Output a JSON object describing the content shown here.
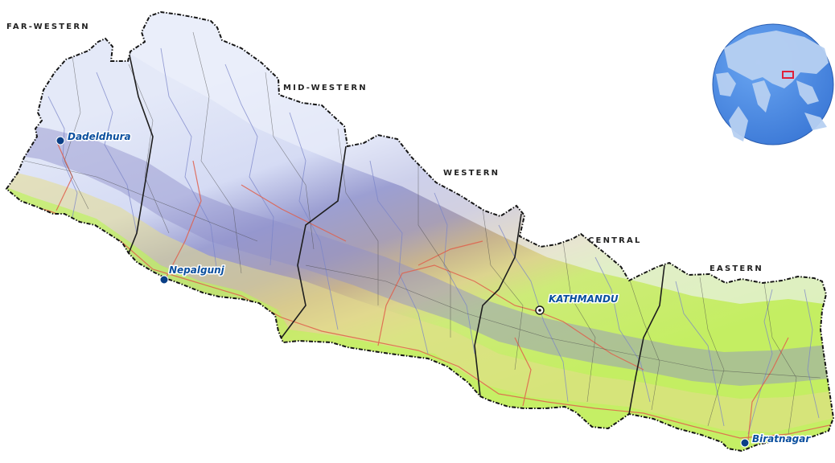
{
  "map": {
    "country": "Nepal",
    "regions": [
      {
        "id": "far-western",
        "label": "FAR-WESTERN"
      },
      {
        "id": "mid-western",
        "label": "MID-WESTERN"
      },
      {
        "id": "western",
        "label": "WESTERN"
      },
      {
        "id": "central",
        "label": "CENTRAL"
      },
      {
        "id": "eastern",
        "label": "EASTERN"
      }
    ],
    "cities": [
      {
        "id": "dadeldhura",
        "label": "Dadeldhura",
        "type": "town"
      },
      {
        "id": "nepalgunj",
        "label": "Nepalgunj",
        "type": "town"
      },
      {
        "id": "kathmandu",
        "label": "KATHMANDU",
        "type": "capital"
      },
      {
        "id": "biratnagar",
        "label": "Biratnagar",
        "type": "town"
      }
    ],
    "colors": {
      "lowland": "#c9ef6a",
      "foothill": "#e8e08c",
      "midhill": "#b9a58e",
      "mountain": "#8f91c9",
      "highland": "#dfe5f7",
      "rivers": "#7a84c8",
      "roads": "#e0604c",
      "town_marker": "#0a3f86",
      "city_label": "#0a4f9e"
    },
    "globe_inset": {
      "ocean_color": "#4f8fe8",
      "land_color": "#b7d0f2",
      "highlight_color": "#e0203a",
      "icons": [
        "globe-icon",
        "location-highlight-icon"
      ]
    }
  }
}
